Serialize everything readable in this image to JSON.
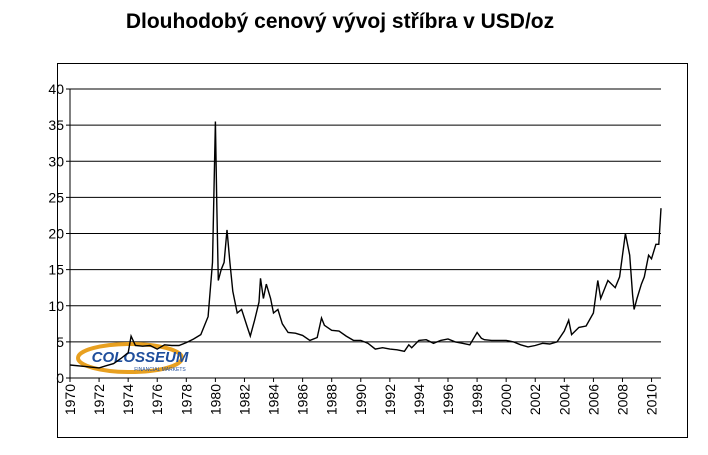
{
  "chart_data": {
    "type": "line",
    "title": "Dlouhodobý cenový vývoj stříbra v USD/oz",
    "logo": {
      "text": "COLOSSEUM",
      "subtext": "FINANCIAL MARKETS"
    },
    "xlim": [
      1970,
      2010.65
    ],
    "xticks": [
      1970,
      1972,
      1974,
      1976,
      1978,
      1980,
      1982,
      1984,
      1986,
      1988,
      1990,
      1992,
      1994,
      1996,
      1998,
      2000,
      2002,
      2004,
      2006,
      2008,
      2010
    ],
    "ylim": [
      0,
      40
    ],
    "yticks": [
      0,
      5,
      10,
      15,
      20,
      25,
      30,
      35,
      40
    ],
    "grid": true,
    "series": [
      {
        "color": "#000000",
        "x": [
          1970,
          1971,
          1971.5,
          1972,
          1972.5,
          1973,
          1973.5,
          1974,
          1974.2,
          1974.5,
          1975,
          1975.5,
          1976,
          1976.5,
          1977,
          1977.5,
          1978,
          1978.5,
          1979,
          1979.5,
          1979.8,
          1980,
          1980.1,
          1980.2,
          1980.4,
          1980.6,
          1980.8,
          1981,
          1981.2,
          1981.5,
          1981.8,
          1982.2,
          1982.4,
          1982.7,
          1983,
          1983.1,
          1983.3,
          1983.5,
          1983.8,
          1984,
          1984.3,
          1984.6,
          1985,
          1985.5,
          1986,
          1986.5,
          1987,
          1987.3,
          1987.5,
          1988,
          1988.5,
          1989,
          1989.5,
          1990,
          1990.5,
          1991,
          1991.5,
          1992,
          1992.5,
          1993,
          1993.3,
          1993.5,
          1994,
          1994.5,
          1995,
          1995.5,
          1996,
          1996.5,
          1997,
          1997.5,
          1998,
          1998.3,
          1998.5,
          1999,
          1999.5,
          2000,
          2000.5,
          2001,
          2001.5,
          2002,
          2002.5,
          2003,
          2003.5,
          2004,
          2004.3,
          2004.5,
          2005,
          2005.5,
          2006,
          2006.3,
          2006.5,
          2006.8,
          2007,
          2007.5,
          2007.8,
          2008,
          2008.2,
          2008.5,
          2008.7,
          2008.8,
          2009,
          2009.3,
          2009.5,
          2009.8,
          2010,
          2010.3,
          2010.5,
          2010.65
        ],
        "values": [
          1.8,
          1.6,
          1.5,
          1.4,
          1.7,
          2.0,
          2.7,
          3.5,
          5.8,
          4.5,
          4.4,
          4.5,
          4.0,
          4.6,
          4.5,
          4.5,
          4.9,
          5.4,
          6.0,
          8.5,
          16,
          35.5,
          24,
          13.5,
          15,
          16,
          20.5,
          16,
          12,
          9,
          9.5,
          7,
          5.8,
          8,
          10.5,
          13.8,
          11,
          13,
          11,
          9,
          9.5,
          7.5,
          6.3,
          6.2,
          5.9,
          5.2,
          5.6,
          8.3,
          7.3,
          6.6,
          6.5,
          5.8,
          5.2,
          5.2,
          4.8,
          4.0,
          4.2,
          4.0,
          3.9,
          3.7,
          4.6,
          4.2,
          5.2,
          5.3,
          4.8,
          5.2,
          5.4,
          5.0,
          4.8,
          4.6,
          6.3,
          5.5,
          5.3,
          5.2,
          5.2,
          5.2,
          5.0,
          4.6,
          4.3,
          4.5,
          4.8,
          4.7,
          5.0,
          6.5,
          8.0,
          6.0,
          7.0,
          7.2,
          9.0,
          13.5,
          11,
          12.5,
          13.5,
          12.5,
          14,
          17,
          20,
          17,
          11.5,
          9.5,
          11,
          13,
          14,
          17,
          16.5,
          18.5,
          18.5,
          23.5
        ]
      }
    ]
  }
}
